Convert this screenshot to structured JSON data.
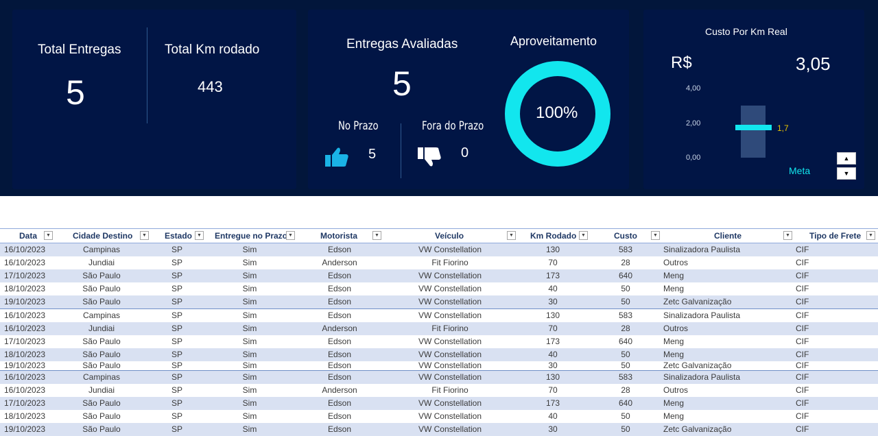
{
  "kpis": {
    "total_entregas": {
      "label": "Total Entregas",
      "value": "5"
    },
    "total_km": {
      "label": "Total Km rodado",
      "value": "443"
    },
    "entregas_avaliadas": {
      "label": "Entregas Avaliadas",
      "value": "5"
    },
    "no_prazo": {
      "label": "No Prazo",
      "value": "5",
      "icon": "thumbs-up-icon"
    },
    "fora_prazo": {
      "label": "Fora do Prazo",
      "value": "0",
      "icon": "thumbs-down-icon"
    },
    "aproveitamento": {
      "label": "Aproveitamento",
      "value": "100%",
      "fraction": 1.0
    },
    "custo_km": {
      "label": "Custo Por Km Real",
      "currency": "R$",
      "value": "3,05",
      "axis": [
        "4,00",
        "2,00",
        "0,00"
      ],
      "meta_value": "1,7",
      "meta_label": "Meta"
    }
  },
  "colors": {
    "background": "#02163b",
    "card": "#011545",
    "accent": "#12e6ee",
    "thumb": "#1ab3e6",
    "meta_value": "#e8c400",
    "row_band": "#d9e1f2",
    "header_text": "#1f3864"
  },
  "table": {
    "columns": [
      "Data",
      "Cidade Destino",
      "Estado",
      "Entregue no Prazo",
      "Motorista",
      "Veículo",
      "Km Rodado",
      "Custo",
      "Cliente",
      "Tipo de Frete"
    ],
    "rows": [
      [
        "16/10/2023",
        "Campinas",
        "SP",
        "Sim",
        "Edson",
        "VW Constellation",
        "130",
        "583",
        "Sinalizadora Paulista",
        "CIF"
      ],
      [
        "16/10/2023",
        "Jundiai",
        "SP",
        "Sim",
        "Anderson",
        "Fit Fiorino",
        "70",
        "28",
        "Outros",
        "CIF"
      ],
      [
        "17/10/2023",
        "São Paulo",
        "SP",
        "Sim",
        "Edson",
        "VW Constellation",
        "173",
        "640",
        "Meng",
        "CIF"
      ],
      [
        "18/10/2023",
        "São Paulo",
        "SP",
        "Sim",
        "Edson",
        "VW Constellation",
        "40",
        "50",
        "Meng",
        "CIF"
      ],
      [
        "19/10/2023",
        "São Paulo",
        "SP",
        "Sim",
        "Edson",
        "VW Constellation",
        "30",
        "50",
        "Zetc Galvanização",
        "CIF"
      ],
      [
        "16/10/2023",
        "Campinas",
        "SP",
        "Sim",
        "Edson",
        "VW Constellation",
        "130",
        "583",
        "Sinalizadora Paulista",
        "CIF"
      ],
      [
        "16/10/2023",
        "Jundiai",
        "SP",
        "Sim",
        "Anderson",
        "Fit Fiorino",
        "70",
        "28",
        "Outros",
        "CIF"
      ],
      [
        "17/10/2023",
        "São Paulo",
        "SP",
        "Sim",
        "Edson",
        "VW Constellation",
        "173",
        "640",
        "Meng",
        "CIF"
      ],
      [
        "18/10/2023",
        "São Paulo",
        "SP",
        "Sim",
        "Edson",
        "VW Constellation",
        "40",
        "50",
        "Meng",
        "CIF"
      ],
      [
        "19/10/2023",
        "São Paulo",
        "SP",
        "Sim",
        "Edson",
        "VW Constellation",
        "30",
        "50",
        "Zetc Galvanização",
        "CIF"
      ],
      [
        "16/10/2023",
        "Campinas",
        "SP",
        "Sim",
        "Edson",
        "VW Constellation",
        "130",
        "583",
        "Sinalizadora Paulista",
        "CIF"
      ],
      [
        "16/10/2023",
        "Jundiai",
        "SP",
        "Sim",
        "Anderson",
        "Fit Fiorino",
        "70",
        "28",
        "Outros",
        "CIF"
      ],
      [
        "17/10/2023",
        "São Paulo",
        "SP",
        "Sim",
        "Edson",
        "VW Constellation",
        "173",
        "640",
        "Meng",
        "CIF"
      ],
      [
        "18/10/2023",
        "São Paulo",
        "SP",
        "Sim",
        "Edson",
        "VW Constellation",
        "40",
        "50",
        "Meng",
        "CIF"
      ],
      [
        "19/10/2023",
        "São Paulo",
        "SP",
        "Sim",
        "Edson",
        "VW Constellation",
        "30",
        "50",
        "Zetc Galvanização",
        "CIF"
      ]
    ]
  }
}
